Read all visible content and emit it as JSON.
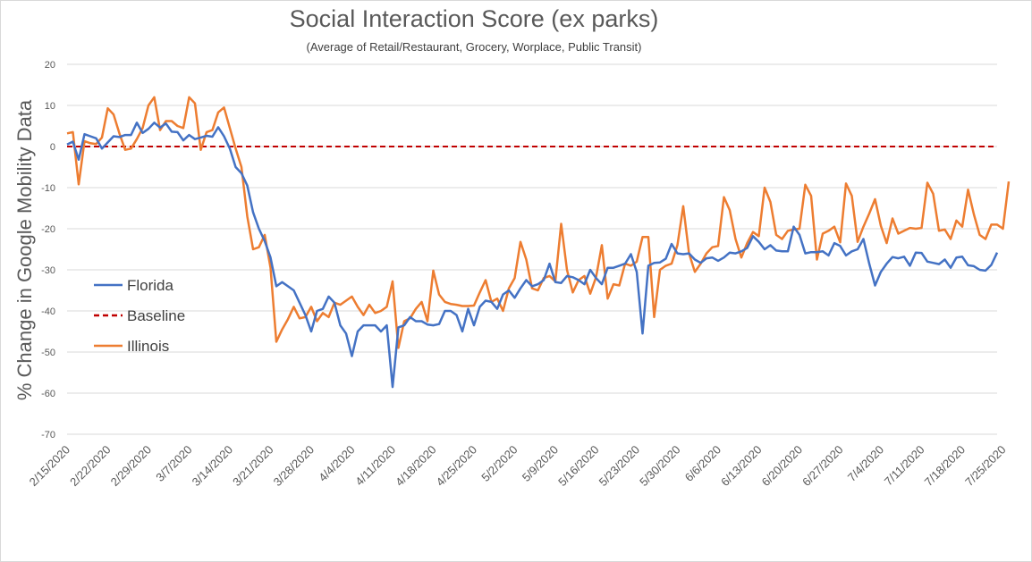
{
  "chart_data": {
    "type": "line",
    "title": "Social Interaction Score (ex parks)",
    "subtitle": "(Average of Retail/Restaurant, Grocery, Worplace, Public Transit)",
    "ylabel": "% Change in Google Mobility Data",
    "ylim": [
      -70,
      20
    ],
    "yticks": [
      20,
      10,
      0,
      -10,
      -20,
      -30,
      -40,
      -50,
      -60,
      -70
    ],
    "start_date": "2/15/2020",
    "xticks": [
      "2/15/2020",
      "2/22/2020",
      "2/29/2020",
      "3/7/2020",
      "3/14/2020",
      "3/21/2020",
      "3/28/2020",
      "4/4/2020",
      "4/11/2020",
      "4/18/2020",
      "4/25/2020",
      "5/2/2020",
      "5/9/2020",
      "5/16/2020",
      "5/23/2020",
      "5/30/2020",
      "6/6/2020",
      "6/13/2020",
      "6/20/2020",
      "6/27/2020",
      "7/4/2020",
      "7/11/2020",
      "7/18/2020",
      "7/25/2020"
    ],
    "grid": true,
    "legend_position": "left",
    "series": [
      {
        "name": "Florida",
        "color": "#4472C4",
        "dash": false,
        "values": [
          0.5,
          1.2,
          -3.2,
          3,
          2.5,
          2,
          -0.5,
          1,
          2.5,
          2.3,
          2.8,
          2.8,
          5.8,
          3.3,
          4.3,
          5.8,
          4.6,
          5.6,
          3.6,
          3.5,
          1.5,
          2.8,
          1.8,
          2.2,
          2.6,
          2.4,
          4.7,
          2.5,
          -0.5,
          -5,
          -6.5,
          -9.5,
          -16,
          -20,
          -23,
          -27,
          -34,
          -33,
          -34,
          -35,
          -38,
          -41,
          -45,
          -40,
          -39.5,
          -36.5,
          -38,
          -43.5,
          -45.5,
          -51,
          -45,
          -43.5,
          -43.5,
          -43.5,
          -45,
          -43.5,
          -58.5,
          -44,
          -43.5,
          -41.5,
          -42.5,
          -42.5,
          -43.3,
          -43.5,
          -43.2,
          -40,
          -40,
          -41,
          -45,
          -39.5,
          -43.5,
          -39,
          -37.5,
          -37.8,
          -39.5,
          -36,
          -35,
          -36.8,
          -34.5,
          -32.5,
          -34,
          -33.5,
          -32.5,
          -28.5,
          -33,
          -33.2,
          -31.5,
          -31.8,
          -32.5,
          -33.5,
          -30,
          -32,
          -33.5,
          -29.5,
          -29.5,
          -29,
          -28.5,
          -26.2,
          -30.5,
          -45.5,
          -29,
          -28.3,
          -28.2,
          -27.3,
          -23.7,
          -26,
          -26.2,
          -26,
          -27.5,
          -28.3,
          -27.2,
          -27,
          -27.8,
          -27,
          -25.8,
          -26,
          -25.5,
          -24.7,
          -21.8,
          -23.2,
          -25,
          -24,
          -25.3,
          -25.5,
          -25.5,
          -19.5,
          -21.5,
          -26,
          -25.7,
          -25.7,
          -25.5,
          -26.5,
          -23.5,
          -24.2,
          -26.5,
          -25.5,
          -25,
          -22.5,
          -28.5,
          -33.8,
          -30.5,
          -28.5,
          -26.9,
          -27.2,
          -26.8,
          -29,
          -25.8,
          -25.9,
          -28,
          -28.3,
          -28.6,
          -27.5,
          -29.5,
          -27,
          -26.8,
          -28.9,
          -29.1,
          -30,
          -30.2,
          -28.8,
          -25.8
        ]
      },
      {
        "name": "Baseline",
        "color": "#C00000",
        "dash": true,
        "values": "constant-0"
      },
      {
        "name": "Illinois",
        "color": "#ED7D31",
        "dash": false,
        "values": [
          3.2,
          3.5,
          -9.2,
          1.3,
          0.8,
          0.6,
          2.2,
          9.3,
          7.8,
          3.2,
          -0.8,
          -0.5,
          1.8,
          4.5,
          10,
          12,
          4,
          6.2,
          6.2,
          5,
          4.5,
          12,
          10.5,
          -0.8,
          3.5,
          4,
          8.3,
          9.5,
          4.5,
          -0.5,
          -5,
          -17,
          -25,
          -24.5,
          -21.5,
          -29.5,
          -47.5,
          -44.5,
          -42,
          -39,
          -41.8,
          -41.5,
          -39,
          -42.5,
          -40.5,
          -41.5,
          -38,
          -38.5,
          -37.5,
          -36.5,
          -39,
          -41,
          -38.5,
          -40.5,
          -40,
          -39,
          -32.8,
          -49,
          -42.5,
          -41.8,
          -39.5,
          -37.8,
          -42.5,
          -30.2,
          -36,
          -37.8,
          -38.3,
          -38.5,
          -38.8,
          -38.8,
          -38.7,
          -35.5,
          -32.5,
          -37.8,
          -37,
          -40,
          -34.5,
          -32,
          -23.2,
          -27.5,
          -34.5,
          -35,
          -32,
          -31.5,
          -32.8,
          -18.8,
          -30,
          -35.5,
          -32.5,
          -31.5,
          -35.8,
          -31.8,
          -24,
          -37,
          -33.5,
          -33.8,
          -28.5,
          -29,
          -28,
          -22,
          -22,
          -41.5,
          -30,
          -29,
          -28.5,
          -24,
          -14.5,
          -26,
          -30.5,
          -28.5,
          -26,
          -24.5,
          -24.2,
          -12.3,
          -15.5,
          -22.5,
          -27,
          -23.5,
          -20.8,
          -21.8,
          -10,
          -13.5,
          -21.5,
          -22.5,
          -20.5,
          -20.2,
          -20,
          -9.3,
          -12,
          -27.5,
          -21.2,
          -20.5,
          -19.5,
          -23.3,
          -9,
          -12,
          -23.2,
          -19.5,
          -16.3,
          -12.8,
          -19.3,
          -23.5,
          -17.5,
          -21.2,
          -20.5,
          -19.8,
          -20,
          -19.8,
          -8.8,
          -11.5,
          -20.5,
          -20.2,
          -22.5,
          -18,
          -19.5,
          -10.5,
          -16.5,
          -21.5,
          -22.5,
          -19,
          -19,
          -20,
          -8.5
        ]
      }
    ]
  }
}
